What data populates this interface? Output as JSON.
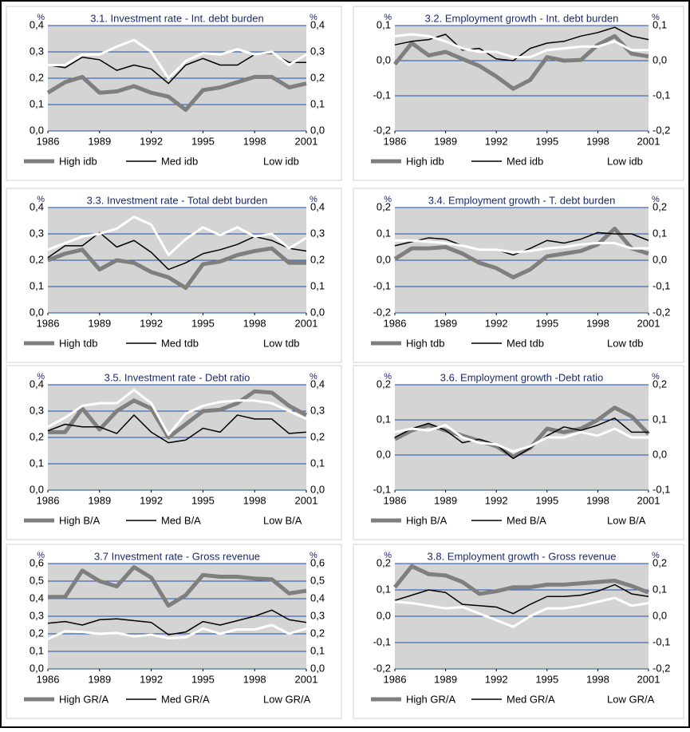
{
  "chart_data": [
    {
      "type": "line",
      "title": "3.1. Investment rate - Int. debt burden",
      "ylabel": "%",
      "y2label": "%",
      "x": [
        1986,
        1987,
        1988,
        1989,
        1990,
        1991,
        1992,
        1993,
        1994,
        1995,
        1996,
        1997,
        1998,
        1999,
        2000,
        2001
      ],
      "xlim": [
        1986,
        2001
      ],
      "xticks": [
        1986,
        1989,
        1992,
        1995,
        1998,
        2001
      ],
      "ylim": [
        0,
        0.4
      ],
      "yticks": [
        {
          "value": 0,
          "label": "0,0"
        },
        {
          "value": 0.1,
          "label": "0,1"
        },
        {
          "value": 0.2,
          "label": "0,2"
        },
        {
          "value": 0.3,
          "label": "0,3"
        },
        {
          "value": 0.4,
          "label": "0,4"
        }
      ],
      "grid": true,
      "legend": "bottom",
      "series": [
        {
          "name": "High idb",
          "color": "#7f7f7f",
          "values": [
            0.145,
            0.185,
            0.205,
            0.145,
            0.15,
            0.17,
            0.145,
            0.13,
            0.08,
            0.155,
            0.165,
            0.185,
            0.205,
            0.205,
            0.165,
            0.18
          ]
        },
        {
          "name": "Med idb",
          "color": "#000000",
          "values": [
            0.25,
            0.24,
            0.28,
            0.27,
            0.23,
            0.25,
            0.235,
            0.18,
            0.25,
            0.275,
            0.25,
            0.25,
            0.29,
            0.295,
            0.26,
            0.26
          ]
        },
        {
          "name": "Low idb",
          "color": "#ffffff",
          "values": [
            0.25,
            0.25,
            0.29,
            0.29,
            0.32,
            0.345,
            0.3,
            0.2,
            0.265,
            0.295,
            0.29,
            0.31,
            0.29,
            0.3,
            0.25,
            0.29
          ]
        }
      ]
    },
    {
      "type": "line",
      "title": "3.2. Employment growth - Int. debt burden",
      "ylabel": "%",
      "y2label": "%",
      "x": [
        1986,
        1987,
        1988,
        1989,
        1990,
        1991,
        1992,
        1993,
        1994,
        1995,
        1996,
        1997,
        1998,
        1999,
        2000,
        2001
      ],
      "xlim": [
        1986,
        2001
      ],
      "xticks": [
        1986,
        1989,
        1992,
        1995,
        1998,
        2001
      ],
      "ylim": [
        -0.2,
        0.1
      ],
      "yticks": [
        {
          "value": -0.2,
          "label": "-0,2"
        },
        {
          "value": -0.1,
          "label": "-0,1"
        },
        {
          "value": 0,
          "label": "0,0"
        },
        {
          "value": 0.1,
          "label": "0,1"
        }
      ],
      "grid": true,
      "legend": "bottom",
      "series": [
        {
          "name": "High idb",
          "color": "#7f7f7f",
          "values": [
            -0.01,
            0.05,
            0.015,
            0.025,
            0.005,
            -0.015,
            -0.045,
            -0.08,
            -0.055,
            0.01,
            0,
            0.002,
            0.045,
            0.07,
            0.02,
            0.012
          ]
        },
        {
          "name": "Med idb",
          "color": "#000000",
          "values": [
            0.045,
            0.055,
            0.06,
            0.075,
            0.03,
            0.035,
            0.005,
            0,
            0.035,
            0.05,
            0.055,
            0.07,
            0.08,
            0.095,
            0.07,
            0.06
          ]
        },
        {
          "name": "Low idb",
          "color": "#ffffff",
          "values": [
            0.07,
            0.075,
            0.07,
            0.055,
            0.035,
            0.025,
            0.025,
            0.01,
            0.01,
            0.03,
            0.035,
            0.04,
            0.04,
            0.055,
            0.03,
            0.03
          ]
        }
      ]
    },
    {
      "type": "line",
      "title": "3.3. Investment rate - Total debt burden",
      "ylabel": "%",
      "y2label": "%",
      "x": [
        1986,
        1987,
        1988,
        1989,
        1990,
        1991,
        1992,
        1993,
        1994,
        1995,
        1996,
        1997,
        1998,
        1999,
        2000,
        2001
      ],
      "xlim": [
        1986,
        2001
      ],
      "xticks": [
        1986,
        1989,
        1992,
        1995,
        1998,
        2001
      ],
      "ylim": [
        0,
        0.4
      ],
      "yticks": [
        {
          "value": 0,
          "label": "0,0"
        },
        {
          "value": 0.1,
          "label": "0,1"
        },
        {
          "value": 0.2,
          "label": "0,2"
        },
        {
          "value": 0.3,
          "label": "0,3"
        },
        {
          "value": 0.4,
          "label": "0,4"
        }
      ],
      "grid": true,
      "legend": "bottom",
      "series": [
        {
          "name": "High tdb",
          "color": "#7f7f7f",
          "values": [
            0.2,
            0.225,
            0.24,
            0.165,
            0.2,
            0.19,
            0.155,
            0.135,
            0.095,
            0.185,
            0.195,
            0.22,
            0.235,
            0.245,
            0.19,
            0.19
          ]
        },
        {
          "name": "Med tdb",
          "color": "#000000",
          "values": [
            0.21,
            0.255,
            0.255,
            0.305,
            0.25,
            0.275,
            0.23,
            0.165,
            0.19,
            0.225,
            0.24,
            0.26,
            0.29,
            0.275,
            0.245,
            0.235
          ]
        },
        {
          "name": "Low tdb",
          "color": "#ffffff",
          "values": [
            0.24,
            0.265,
            0.29,
            0.3,
            0.32,
            0.365,
            0.335,
            0.22,
            0.28,
            0.325,
            0.295,
            0.325,
            0.29,
            0.3,
            0.245,
            0.285
          ]
        }
      ]
    },
    {
      "type": "line",
      "title": "3.4. Employment growth - T. debt burden",
      "ylabel": "%",
      "y2label": "%",
      "x": [
        1986,
        1987,
        1988,
        1989,
        1990,
        1991,
        1992,
        1993,
        1994,
        1995,
        1996,
        1997,
        1998,
        1999,
        2000,
        2001
      ],
      "xlim": [
        1986,
        2001
      ],
      "xticks": [
        1986,
        1989,
        1992,
        1995,
        1998,
        2001
      ],
      "ylim": [
        -0.2,
        0.2
      ],
      "yticks": [
        {
          "value": -0.2,
          "label": "-0,2"
        },
        {
          "value": -0.1,
          "label": "-0,1"
        },
        {
          "value": 0,
          "label": "0,0"
        },
        {
          "value": 0.1,
          "label": "0,1"
        },
        {
          "value": 0.2,
          "label": "0,2"
        }
      ],
      "grid": true,
      "legend": "bottom",
      "series": [
        {
          "name": "High tdb",
          "color": "#7f7f7f",
          "values": [
            0.005,
            0.045,
            0.045,
            0.05,
            0.025,
            -0.01,
            -0.03,
            -0.065,
            -0.035,
            0.015,
            0.025,
            0.035,
            0.06,
            0.12,
            0.045,
            0.025
          ]
        },
        {
          "name": "Med tdb",
          "color": "#000000",
          "values": [
            0.055,
            0.07,
            0.085,
            0.08,
            0.055,
            0.04,
            0.04,
            0.02,
            0.045,
            0.075,
            0.065,
            0.08,
            0.105,
            0.1,
            0.1,
            0.075
          ]
        },
        {
          "name": "Low tdb",
          "color": "#ffffff",
          "values": [
            0.075,
            0.075,
            0.07,
            0.065,
            0.055,
            0.04,
            0.04,
            0.03,
            0.035,
            0.045,
            0.05,
            0.06,
            0.065,
            0.065,
            0.045,
            0.045
          ]
        }
      ]
    },
    {
      "type": "line",
      "title": "3.5. Investment rate - Debt ratio",
      "ylabel": "%",
      "y2label": "%",
      "x": [
        1986,
        1987,
        1988,
        1989,
        1990,
        1991,
        1992,
        1993,
        1994,
        1995,
        1996,
        1997,
        1998,
        1999,
        2000,
        2001
      ],
      "xlim": [
        1986,
        2001
      ],
      "xticks": [
        1986,
        1989,
        1992,
        1995,
        1998,
        2001
      ],
      "ylim": [
        0,
        0.4
      ],
      "yticks": [
        {
          "value": 0,
          "label": "0,0"
        },
        {
          "value": 0.1,
          "label": "0,1"
        },
        {
          "value": 0.2,
          "label": "0,2"
        },
        {
          "value": 0.3,
          "label": "0,3"
        },
        {
          "value": 0.4,
          "label": "0,4"
        }
      ],
      "grid": true,
      "legend": "bottom",
      "series": [
        {
          "name": "High B/A",
          "color": "#7f7f7f",
          "values": [
            0.22,
            0.22,
            0.31,
            0.23,
            0.3,
            0.34,
            0.31,
            0.2,
            0.25,
            0.3,
            0.305,
            0.33,
            0.375,
            0.37,
            0.32,
            0.285
          ]
        },
        {
          "name": "Med B/A",
          "color": "#000000",
          "values": [
            0.225,
            0.25,
            0.24,
            0.24,
            0.215,
            0.285,
            0.22,
            0.18,
            0.19,
            0.235,
            0.22,
            0.285,
            0.27,
            0.27,
            0.215,
            0.22
          ]
        },
        {
          "name": "Low B/A",
          "color": "#ffffff",
          "values": [
            0.24,
            0.275,
            0.32,
            0.33,
            0.33,
            0.38,
            0.33,
            0.21,
            0.29,
            0.32,
            0.335,
            0.34,
            0.34,
            0.33,
            0.3,
            0.27
          ]
        }
      ]
    },
    {
      "type": "line",
      "title": "3.6. Employment growth -Debt ratio",
      "ylabel": "%",
      "y2label": "%",
      "x": [
        1986,
        1987,
        1988,
        1989,
        1990,
        1991,
        1992,
        1993,
        1994,
        1995,
        1996,
        1997,
        1998,
        1999,
        2000,
        2001
      ],
      "xlim": [
        1986,
        2001
      ],
      "xticks": [
        1986,
        1989,
        1992,
        1995,
        1998,
        2001
      ],
      "ylim": [
        -0.1,
        0.2
      ],
      "yticks": [
        {
          "value": -0.1,
          "label": "-0,1"
        },
        {
          "value": 0,
          "label": "0,0"
        },
        {
          "value": 0.1,
          "label": "0,1"
        },
        {
          "value": 0.2,
          "label": "0,2"
        }
      ],
      "grid": true,
      "legend": "bottom",
      "series": [
        {
          "name": "High B/A",
          "color": "#7f7f7f",
          "values": [
            0.045,
            0.07,
            0.085,
            0.07,
            0.055,
            0.04,
            0.025,
            -0.005,
            0.02,
            0.075,
            0.065,
            0.075,
            0.1,
            0.135,
            0.11,
            0.06
          ]
        },
        {
          "name": "Med B/A",
          "color": "#000000",
          "values": [
            0.05,
            0.075,
            0.09,
            0.07,
            0.035,
            0.045,
            0.03,
            -0.01,
            0.02,
            0.055,
            0.08,
            0.07,
            0.085,
            0.105,
            0.065,
            0.065
          ]
        },
        {
          "name": "Low B/A",
          "color": "#ffffff",
          "values": [
            0.065,
            0.075,
            0.07,
            0.085,
            0.05,
            0.035,
            0.03,
            0.01,
            0.025,
            0.05,
            0.05,
            0.065,
            0.055,
            0.075,
            0.05,
            0.05
          ]
        }
      ]
    },
    {
      "type": "line",
      "title": "3.7 Investment rate - Gross revenue",
      "ylabel": "%",
      "y2label": "%",
      "x": [
        1986,
        1987,
        1988,
        1989,
        1990,
        1991,
        1992,
        1993,
        1994,
        1995,
        1996,
        1997,
        1998,
        1999,
        2000,
        2001
      ],
      "xlim": [
        1986,
        2001
      ],
      "xticks": [
        1986,
        1989,
        1992,
        1995,
        1998,
        2001
      ],
      "ylim": [
        0,
        0.6
      ],
      "yticks": [
        {
          "value": 0,
          "label": "0,0"
        },
        {
          "value": 0.1,
          "label": "0,1"
        },
        {
          "value": 0.2,
          "label": "0,2"
        },
        {
          "value": 0.3,
          "label": "0,3"
        },
        {
          "value": 0.4,
          "label": "0,4"
        },
        {
          "value": 0.5,
          "label": "0,5"
        },
        {
          "value": 0.6,
          "label": "0,6"
        }
      ],
      "grid": true,
      "legend": "bottom",
      "series": [
        {
          "name": "High GR/A",
          "color": "#7f7f7f",
          "values": [
            0.41,
            0.41,
            0.56,
            0.5,
            0.47,
            0.58,
            0.52,
            0.36,
            0.42,
            0.535,
            0.525,
            0.525,
            0.515,
            0.51,
            0.43,
            0.445
          ]
        },
        {
          "name": "Med GR/A",
          "color": "#000000",
          "values": [
            0.26,
            0.27,
            0.25,
            0.28,
            0.285,
            0.275,
            0.265,
            0.195,
            0.21,
            0.27,
            0.25,
            0.275,
            0.3,
            0.335,
            0.28,
            0.265
          ]
        },
        {
          "name": "Low GR/A",
          "color": "#ffffff",
          "values": [
            0.17,
            0.215,
            0.21,
            0.2,
            0.205,
            0.185,
            0.195,
            0.175,
            0.18,
            0.23,
            0.2,
            0.225,
            0.225,
            0.25,
            0.2,
            0.23
          ]
        }
      ]
    },
    {
      "type": "line",
      "title": "3.8. Employment growth - Gross revenue",
      "ylabel": "%",
      "y2label": "%",
      "x": [
        1986,
        1987,
        1988,
        1989,
        1990,
        1991,
        1992,
        1993,
        1994,
        1995,
        1996,
        1997,
        1998,
        1999,
        2000,
        2001
      ],
      "xlim": [
        1986,
        2001
      ],
      "xticks": [
        1986,
        1989,
        1992,
        1995,
        1998,
        2001
      ],
      "ylim": [
        -0.2,
        0.2
      ],
      "yticks": [
        {
          "value": -0.2,
          "label": "-0,2"
        },
        {
          "value": -0.1,
          "label": "-0,1"
        },
        {
          "value": 0,
          "label": "0,0"
        },
        {
          "value": 0.1,
          "label": "0,1"
        },
        {
          "value": 0.2,
          "label": "0,2"
        }
      ],
      "grid": true,
      "legend": "bottom",
      "series": [
        {
          "name": "High GR/A",
          "color": "#7f7f7f",
          "values": [
            0.11,
            0.19,
            0.16,
            0.155,
            0.13,
            0.085,
            0.095,
            0.11,
            0.11,
            0.12,
            0.12,
            0.125,
            0.13,
            0.135,
            0.115,
            0.09
          ]
        },
        {
          "name": "Med GR/A",
          "color": "#000000",
          "values": [
            0.06,
            0.08,
            0.1,
            0.09,
            0.045,
            0.04,
            0.035,
            0.01,
            0.045,
            0.075,
            0.075,
            0.08,
            0.095,
            0.12,
            0.085,
            0.075
          ]
        },
        {
          "name": "Low GR/A",
          "color": "#ffffff",
          "values": [
            0.055,
            0.05,
            0.04,
            0.03,
            0.035,
            0.01,
            -0.015,
            -0.04,
            0,
            0.03,
            0.03,
            0.04,
            0.055,
            0.07,
            0.04,
            0.05
          ]
        }
      ]
    }
  ]
}
